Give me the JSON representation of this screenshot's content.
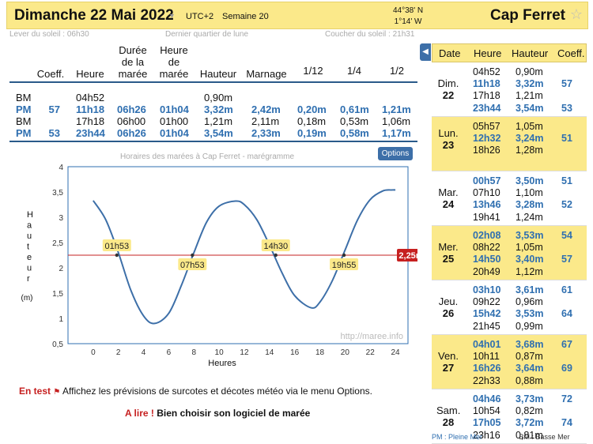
{
  "header": {
    "date": "Dimanche 22 Mai 2022",
    "utc": "UTC+2",
    "week": "Semaine 20",
    "lat": "44°38' N",
    "lon": "1°14' W",
    "place": "Cap Ferret",
    "star": "☆",
    "caret": "▾"
  },
  "sun": {
    "sunrise": "Lever du soleil : 06h30",
    "moon": "Dernier quartier de lune",
    "sunset": "Coucher du soleil : 21h31"
  },
  "table": {
    "headers": {
      "coeff": "Coeff.",
      "heure": "Heure",
      "duree": "Durée de la marée",
      "heure_maree": "Heure de marée",
      "hauteur": "Hauteur",
      "marnage": "Marnage",
      "f12": "1/12",
      "f14": "1/4",
      "f12b": "1/2"
    },
    "rows": [
      {
        "type": "BM",
        "coeff": "",
        "heure": "04h52",
        "duree": "",
        "heure_maree": "",
        "hauteur": "0,90m",
        "marnage": "",
        "a": "",
        "b": "",
        "c": "",
        "blue": false
      },
      {
        "type": "PM",
        "coeff": "57",
        "heure": "11h18",
        "duree": "06h26",
        "heure_maree": "01h04",
        "hauteur": "3,32m",
        "marnage": "2,42m",
        "a": "0,20m",
        "b": "0,61m",
        "c": "1,21m",
        "blue": true
      },
      {
        "type": "BM",
        "coeff": "",
        "heure": "17h18",
        "duree": "06h00",
        "heure_maree": "01h00",
        "hauteur": "1,21m",
        "marnage": "2,11m",
        "a": "0,18m",
        "b": "0,53m",
        "c": "1,06m",
        "blue": false
      },
      {
        "type": "PM",
        "coeff": "53",
        "heure": "23h44",
        "duree": "06h26",
        "heure_maree": "01h04",
        "hauteur": "3,54m",
        "marnage": "2,33m",
        "a": "0,19m",
        "b": "0,58m",
        "c": "1,17m",
        "blue": true
      }
    ]
  },
  "chart_title": "Horaires des marées à Cap Ferret - marégramme",
  "options_label": "Options",
  "chart_data": {
    "type": "line",
    "ylabel": "Hauteur",
    "yunit": "(m)",
    "xlabel": "Heures",
    "xlim": [
      -2,
      25
    ],
    "ylim": [
      0.5,
      4
    ],
    "xticks": [
      "0",
      "2",
      "4",
      "6",
      "8",
      "10",
      "12",
      "14",
      "16",
      "18",
      "20",
      "22",
      "24"
    ],
    "yticks": [
      "0,5",
      "1",
      "1,5",
      "2",
      "2,5",
      "3",
      "3,5",
      "4"
    ],
    "series": [
      {
        "x": [
          0,
          1,
          2,
          3,
          4,
          4.87,
          6,
          7,
          8,
          9,
          10,
          11.3,
          12,
          13,
          14,
          15,
          16,
          17.3,
          18,
          19,
          20,
          21,
          22,
          23,
          23.73,
          24
        ],
        "y": [
          3.33,
          2.95,
          2.3,
          1.55,
          1.05,
          0.9,
          1.1,
          1.65,
          2.3,
          2.9,
          3.22,
          3.32,
          3.25,
          2.95,
          2.45,
          1.9,
          1.45,
          1.21,
          1.32,
          1.75,
          2.35,
          2.95,
          3.35,
          3.52,
          3.54,
          3.54
        ]
      }
    ],
    "reference": {
      "value": 2.25,
      "label": "2,25m"
    },
    "crossings": [
      {
        "x": 1.88,
        "label": "01h53"
      },
      {
        "x": 7.88,
        "label": "07h53"
      },
      {
        "x": 14.5,
        "label": "14h30"
      },
      {
        "x": 19.92,
        "label": "19h55"
      }
    ],
    "watermark": "http://maree.info"
  },
  "notes": {
    "en_test": "En test",
    "en_test_text": "Affichez les prévisions de surcotes et décotes météo via le menu Options.",
    "a_lire": "A lire !",
    "a_lire_text": "Bien choisir son logiciel de marée"
  },
  "side": {
    "headers": {
      "date": "Date",
      "heure": "Heure",
      "hauteur": "Hauteur",
      "coeff": "Coeff."
    },
    "days": [
      {
        "day": "Dim.",
        "num": "22",
        "yellow": false,
        "rows": [
          {
            "h": "04h52",
            "v": "0,90m",
            "c": "",
            "blue": false
          },
          {
            "h": "11h18",
            "v": "3,32m",
            "c": "57",
            "blue": true
          },
          {
            "h": "17h18",
            "v": "1,21m",
            "c": "",
            "blue": false
          },
          {
            "h": "23h44",
            "v": "3,54m",
            "c": "53",
            "blue": true
          }
        ]
      },
      {
        "day": "Lun.",
        "num": "23",
        "yellow": true,
        "rows": [
          {
            "h": "05h57",
            "v": "1,05m",
            "c": "",
            "blue": false
          },
          {
            "h": "12h32",
            "v": "3,24m",
            "c": "51",
            "blue": true
          },
          {
            "h": "18h26",
            "v": "1,28m",
            "c": "",
            "blue": false
          }
        ]
      },
      {
        "day": "Mar.",
        "num": "24",
        "yellow": false,
        "rows": [
          {
            "h": "00h57",
            "v": "3,50m",
            "c": "51",
            "blue": true
          },
          {
            "h": "07h10",
            "v": "1,10m",
            "c": "",
            "blue": false
          },
          {
            "h": "13h46",
            "v": "3,28m",
            "c": "52",
            "blue": true
          },
          {
            "h": "19h41",
            "v": "1,24m",
            "c": "",
            "blue": false
          }
        ]
      },
      {
        "day": "Mer.",
        "num": "25",
        "yellow": true,
        "rows": [
          {
            "h": "02h08",
            "v": "3,53m",
            "c": "54",
            "blue": true
          },
          {
            "h": "08h22",
            "v": "1,05m",
            "c": "",
            "blue": false
          },
          {
            "h": "14h50",
            "v": "3,40m",
            "c": "57",
            "blue": true
          },
          {
            "h": "20h49",
            "v": "1,12m",
            "c": "",
            "blue": false
          }
        ]
      },
      {
        "day": "Jeu.",
        "num": "26",
        "yellow": false,
        "rows": [
          {
            "h": "03h10",
            "v": "3,61m",
            "c": "61",
            "blue": true
          },
          {
            "h": "09h22",
            "v": "0,96m",
            "c": "",
            "blue": false
          },
          {
            "h": "15h42",
            "v": "3,53m",
            "c": "64",
            "blue": true
          },
          {
            "h": "21h45",
            "v": "0,99m",
            "c": "",
            "blue": false
          }
        ]
      },
      {
        "day": "Ven.",
        "num": "27",
        "yellow": true,
        "rows": [
          {
            "h": "04h01",
            "v": "3,68m",
            "c": "67",
            "blue": true
          },
          {
            "h": "10h11",
            "v": "0,87m",
            "c": "",
            "blue": false
          },
          {
            "h": "16h26",
            "v": "3,64m",
            "c": "69",
            "blue": true
          },
          {
            "h": "22h33",
            "v": "0,88m",
            "c": "",
            "blue": false
          }
        ]
      },
      {
        "day": "Sam.",
        "num": "28",
        "yellow": false,
        "rows": [
          {
            "h": "04h46",
            "v": "3,73m",
            "c": "72",
            "blue": true
          },
          {
            "h": "10h54",
            "v": "0,82m",
            "c": "",
            "blue": false
          },
          {
            "h": "17h05",
            "v": "3,72m",
            "c": "74",
            "blue": true
          },
          {
            "h": "23h16",
            "v": "0,81m",
            "c": "",
            "blue": false
          }
        ]
      }
    ],
    "legend_pm": "PM : Pleine Mer",
    "legend_bm": "BM : Basse Mer"
  },
  "colors": {
    "accent": "#2f6fb0",
    "highlight": "#fbe98a",
    "red": "#c62020",
    "line": "#3d6fa8"
  }
}
